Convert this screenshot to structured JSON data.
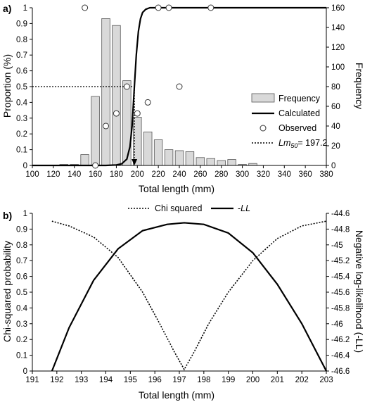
{
  "chart_data": [
    {
      "panel_label": "a)",
      "type": "bar",
      "xlabel": "Total length (mm)",
      "ylabel": "Proportion (%)",
      "y2label": "Frequency",
      "xlim": [
        100,
        380
      ],
      "ylim": [
        0,
        1
      ],
      "y2lim": [
        0,
        160
      ],
      "xticks": [
        100,
        120,
        140,
        160,
        180,
        200,
        220,
        240,
        260,
        280,
        300,
        320,
        340,
        360,
        380
      ],
      "yticks": [
        0,
        0.1,
        0.2,
        0.3,
        0.4,
        0.5,
        0.6,
        0.7,
        0.8,
        0.9,
        1
      ],
      "y2ticks": [
        0,
        20,
        40,
        60,
        80,
        100,
        120,
        140,
        160
      ],
      "legend_position": "right",
      "legend": {
        "frequency": "Frequency",
        "calculated": "Calculated",
        "observed": "Observed",
        "lm50_prefix": "Lm",
        "lm50_sub": "50",
        "lm50_suffix": "= 197.2"
      },
      "lm50": 197.2,
      "series": [
        {
          "name": "Frequency",
          "axis": "right",
          "x": [
            130,
            140,
            150,
            160,
            170,
            180,
            190,
            200,
            210,
            220,
            230,
            240,
            250,
            260,
            270,
            280,
            290,
            300,
            310
          ],
          "values": [
            1,
            1,
            11,
            70,
            149,
            142,
            86,
            49,
            34,
            26,
            16,
            15,
            14,
            8,
            7,
            5,
            6,
            1,
            2
          ]
        },
        {
          "name": "Calculated",
          "axis": "left",
          "type": "line",
          "x": [
            100,
            150,
            170,
            180,
            185,
            190,
            193,
            195,
            197,
            199,
            201,
            203,
            205,
            208,
            212,
            220,
            380
          ],
          "y": [
            0,
            0,
            0,
            0.003,
            0.01,
            0.04,
            0.12,
            0.25,
            0.48,
            0.7,
            0.85,
            0.93,
            0.97,
            0.99,
            1,
            1,
            1
          ]
        },
        {
          "name": "Observed",
          "axis": "left",
          "type": "scatter",
          "x": [
            150,
            160,
            170,
            180,
            190,
            200,
            210,
            220,
            230,
            240,
            270
          ],
          "y": [
            1,
            0,
            0.25,
            0.33,
            0.5,
            0.33,
            0.4,
            1,
            1,
            0.5,
            1
          ]
        }
      ]
    },
    {
      "panel_label": "b)",
      "type": "line",
      "xlabel": "Total length (mm)",
      "ylabel": "Chi-squared probability",
      "y2label": "Negative log-likelihood (-LL)",
      "xlim": [
        191,
        203
      ],
      "ylim": [
        0,
        1
      ],
      "y2lim": [
        -46.6,
        -44.6
      ],
      "xticks": [
        191,
        192,
        193,
        194,
        195,
        196,
        197,
        198,
        199,
        200,
        201,
        202,
        203
      ],
      "yticks": [
        0,
        0.1,
        0.2,
        0.3,
        0.4,
        0.5,
        0.6,
        0.7,
        0.8,
        0.9,
        1
      ],
      "y2ticks": [
        "-44.6",
        "-44.8",
        "-45",
        "-45.2",
        "-45.4",
        "-45.6",
        "-45.8",
        "-46",
        "-46.2",
        "-46.4",
        "-46.6"
      ],
      "legend_position": "top",
      "legend": {
        "chi": "Chi squared",
        "ll_prefix": "-",
        "ll_italic": "LL"
      },
      "series": [
        {
          "name": "Chi squared",
          "axis": "left",
          "x": [
            191.8,
            192.5,
            193.5,
            194.5,
            195.5,
            196.2,
            196.8,
            197.2,
            197.6,
            198.2,
            199,
            200,
            201,
            202,
            203
          ],
          "y": [
            0.95,
            0.92,
            0.85,
            0.72,
            0.5,
            0.3,
            0.12,
            0.01,
            0.12,
            0.3,
            0.5,
            0.7,
            0.84,
            0.92,
            0.95
          ]
        },
        {
          "name": "-LL",
          "axis": "right",
          "x": [
            191.8,
            192.5,
            193.5,
            194.5,
            195.5,
            196.5,
            197.2,
            198,
            199,
            200,
            201,
            202,
            203
          ],
          "y": [
            -46.6,
            -46.05,
            -45.45,
            -45.05,
            -44.82,
            -44.74,
            -44.72,
            -44.74,
            -44.85,
            -45.1,
            -45.5,
            -46.0,
            -46.6
          ]
        }
      ]
    }
  ]
}
